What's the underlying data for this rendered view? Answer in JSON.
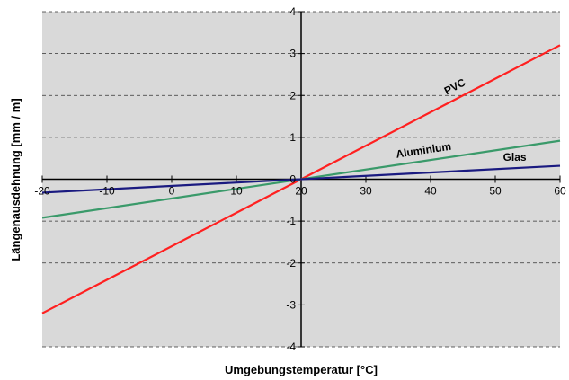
{
  "chart_data": {
    "type": "line",
    "title": "",
    "xlabel": "Umgebungstemperatur [°C]",
    "ylabel": "Längenausdehnung [mm / m]",
    "xlim": [
      -20,
      60
    ],
    "ylim": [
      -4,
      4
    ],
    "x_ticks": [
      "-20",
      "-10",
      "0",
      "10",
      "20",
      "30",
      "40",
      "50",
      "60"
    ],
    "y_ticks": [
      "-4",
      "-3",
      "-2",
      "-1",
      "0",
      "1",
      "2",
      "3",
      "4"
    ],
    "grid": "horizontal dashed",
    "plot_background": "#d9d9d9",
    "series": [
      {
        "name": "PVC",
        "color": "#ff2020",
        "x": [
          -20,
          60
        ],
        "y": [
          -3.2,
          3.2
        ]
      },
      {
        "name": "Aluminium",
        "color": "#3a9a6a",
        "x": [
          -20,
          60
        ],
        "y": [
          -0.92,
          0.92
        ]
      },
      {
        "name": "Glas",
        "color": "#1a1a80",
        "x": [
          -20,
          60
        ],
        "y": [
          -0.32,
          0.32
        ]
      }
    ]
  }
}
